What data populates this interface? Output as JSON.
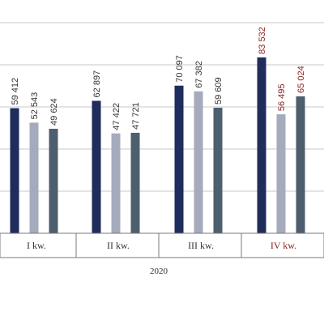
{
  "chart_data": {
    "type": "bar",
    "categories": [
      "I kw.",
      "II kw.",
      "III kw.",
      "IV kw."
    ],
    "group_label": "2020",
    "series": [
      {
        "values": [
          59412,
          62897,
          70097,
          83532
        ]
      },
      {
        "values": [
          52543,
          47422,
          67382,
          56495
        ]
      },
      {
        "values": [
          49624,
          47721,
          59609,
          65024
        ]
      }
    ],
    "data_labels": [
      [
        "59 412",
        "52 543",
        "49 624"
      ],
      [
        "62 897",
        "47 422",
        "47 721"
      ],
      [
        "70 097",
        "67 382",
        "59 609"
      ],
      [
        "83 532",
        "56 495",
        "65 024"
      ]
    ],
    "ylim": [
      0,
      100000
    ],
    "grid": true,
    "colors": {
      "series": [
        "#1f2d5c",
        "#a5aabd",
        "#4d5e6e"
      ],
      "grid": "#c8c8c8",
      "axis": "#7a7a7a",
      "text": "#333333",
      "highlight": "#8b2323"
    },
    "highlight_category_index": 3
  }
}
